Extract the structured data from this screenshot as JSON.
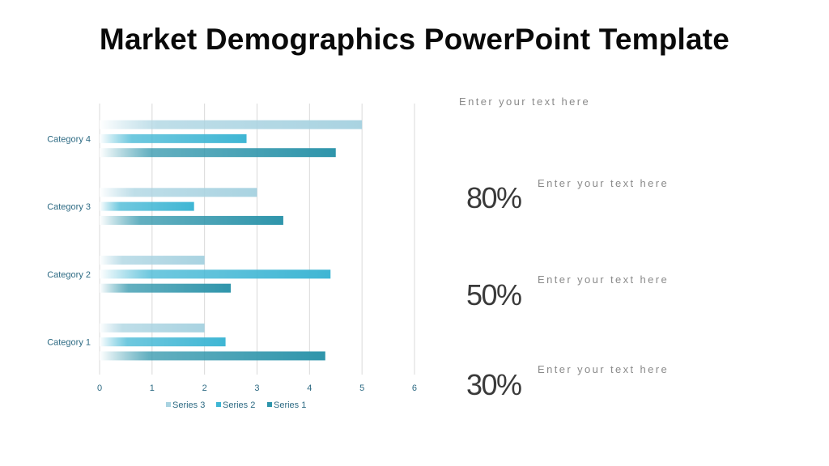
{
  "title": "Market Demographics PowerPoint Template",
  "colors": {
    "series3": "#a9d3e1",
    "series2": "#3fb6d4",
    "series1": "#2f95ab",
    "grid": "#d9d9d9",
    "label": "#2e6b84"
  },
  "chart_data": {
    "type": "bar",
    "orientation": "horizontal",
    "categories": [
      "Category 1",
      "Category 2",
      "Category 3",
      "Category 4"
    ],
    "series": [
      {
        "name": "Series 1",
        "values": [
          4.3,
          2.5,
          3.5,
          4.5
        ]
      },
      {
        "name": "Series 2",
        "values": [
          2.4,
          4.4,
          1.8,
          2.8
        ]
      },
      {
        "name": "Series 3",
        "values": [
          2,
          2,
          3,
          5
        ]
      }
    ],
    "x_ticks": [
      "0",
      "1",
      "2",
      "3",
      "4",
      "5",
      "6"
    ],
    "xlim": [
      0,
      6
    ],
    "grid": true,
    "legend": "bottom",
    "legend_order": [
      "Series 3",
      "Series 2",
      "Series 1"
    ]
  },
  "right_panel": {
    "intro": "Enter your text here",
    "stats": [
      {
        "value": "80%",
        "text": "Enter your text here"
      },
      {
        "value": "50%",
        "text": "Enter your text here"
      },
      {
        "value": "30%",
        "text": "Enter your text here"
      }
    ]
  }
}
